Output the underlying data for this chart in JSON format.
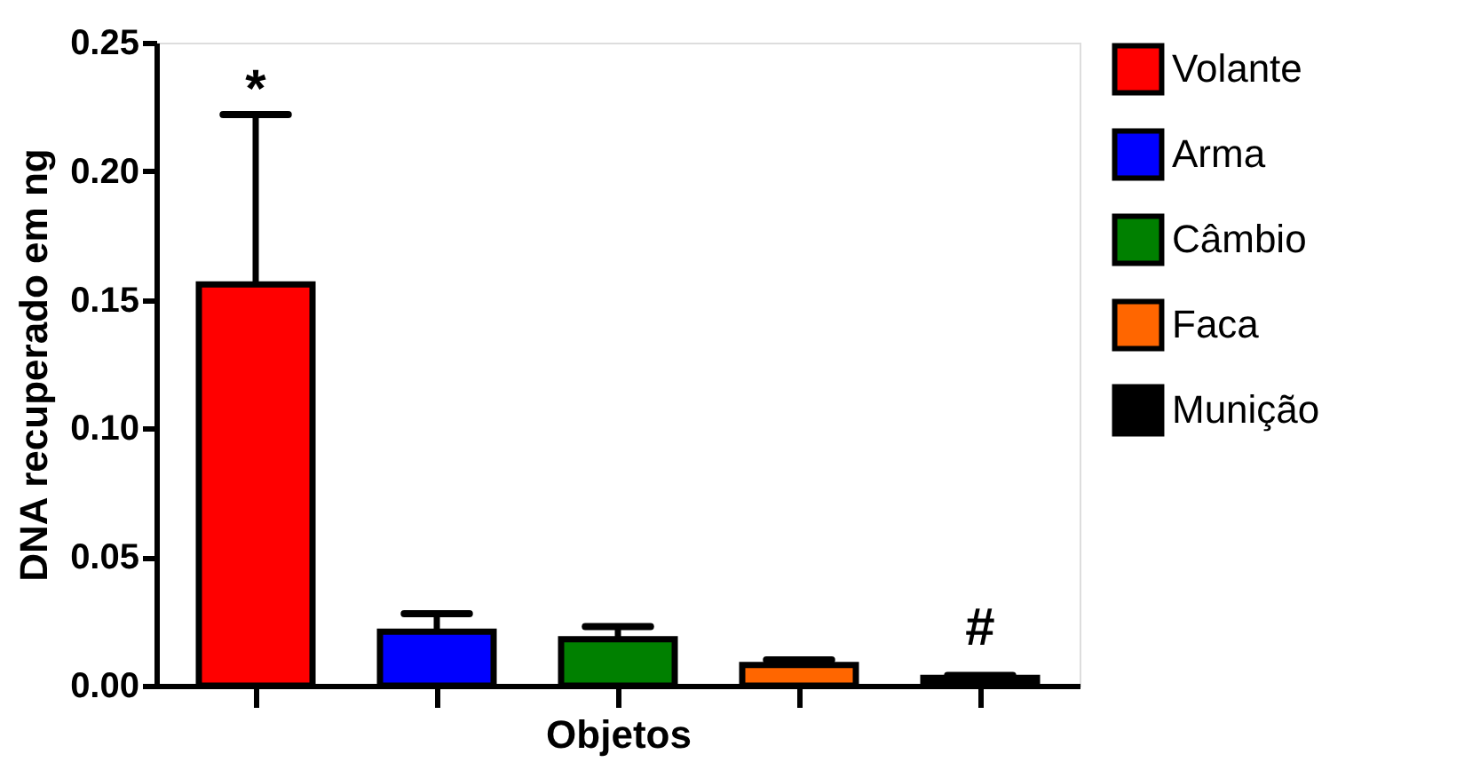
{
  "chart_data": {
    "type": "bar",
    "ylabel": "DNA recuperado em ng",
    "xlabel": "Objetos",
    "categories": [
      null,
      null,
      null,
      null,
      null
    ],
    "series": [
      {
        "name": "Volante",
        "color": "#ff0000",
        "values": [
          0.156,
          null,
          null,
          null,
          null
        ],
        "errors": [
          [
            0.156,
            0.222
          ],
          null,
          null,
          null,
          null
        ]
      },
      {
        "name": "Arma",
        "color": "#0000ff",
        "values": [
          null,
          0.021,
          null,
          null,
          null
        ],
        "errors": [
          null,
          [
            0.021,
            0.028
          ],
          null,
          null,
          null
        ]
      },
      {
        "name": "Câmbio",
        "color": "#008000",
        "values": [
          null,
          null,
          0.018,
          null,
          null
        ],
        "errors": [
          null,
          null,
          [
            0.018,
            0.023
          ],
          null,
          null
        ]
      },
      {
        "name": "Faca",
        "color": "#ff6600",
        "values": [
          null,
          null,
          null,
          0.008,
          null
        ],
        "errors": [
          null,
          null,
          null,
          [
            0.008,
            0.01
          ],
          null
        ]
      },
      {
        "name": "Munição",
        "color": "#000000",
        "values": [
          null,
          null,
          null,
          null,
          0.003
        ],
        "errors": [
          null,
          null,
          null,
          null,
          [
            0.003,
            0.004
          ]
        ]
      }
    ],
    "ylim": [
      0,
      0.25
    ],
    "yticks": [
      {
        "value": 0,
        "label": "0.00"
      },
      {
        "value": 0.05,
        "label": "0.05"
      },
      {
        "value": 0.1,
        "label": "0.10"
      },
      {
        "value": 0.15,
        "label": "0.15"
      },
      {
        "value": 0.2,
        "label": "0.20"
      },
      {
        "value": 0.25,
        "label": "0.25"
      }
    ],
    "annotations": [
      "*",
      "#"
    ],
    "tick_labels": "y",
    "legend": "right",
    "grid": false
  }
}
